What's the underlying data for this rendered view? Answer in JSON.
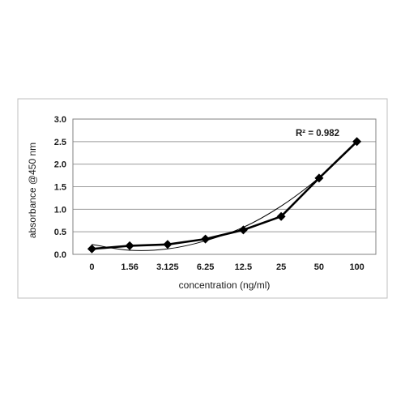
{
  "chart_data": {
    "type": "line",
    "categories": [
      "0",
      "1.56",
      "3.125",
      "6.25",
      "12.5",
      "25",
      "50",
      "100"
    ],
    "series": [
      {
        "values": [
          0.12,
          0.19,
          0.22,
          0.34,
          0.54,
          0.84,
          1.69,
          2.5
        ]
      }
    ],
    "trendline": {
      "values": [
        0.22,
        0.09,
        0.12,
        0.3,
        0.6,
        1.07,
        1.7,
        2.48
      ]
    },
    "annotation": "R² = 0.982",
    "xlabel": "concentration (ng/ml)",
    "ylabel": "absorbance @450 nm",
    "ylim": [
      0,
      3.0
    ],
    "yticks": [
      "0.0",
      "0.5",
      "1.0",
      "1.5",
      "2.0",
      "2.5",
      "3.0"
    ],
    "grid": true
  }
}
